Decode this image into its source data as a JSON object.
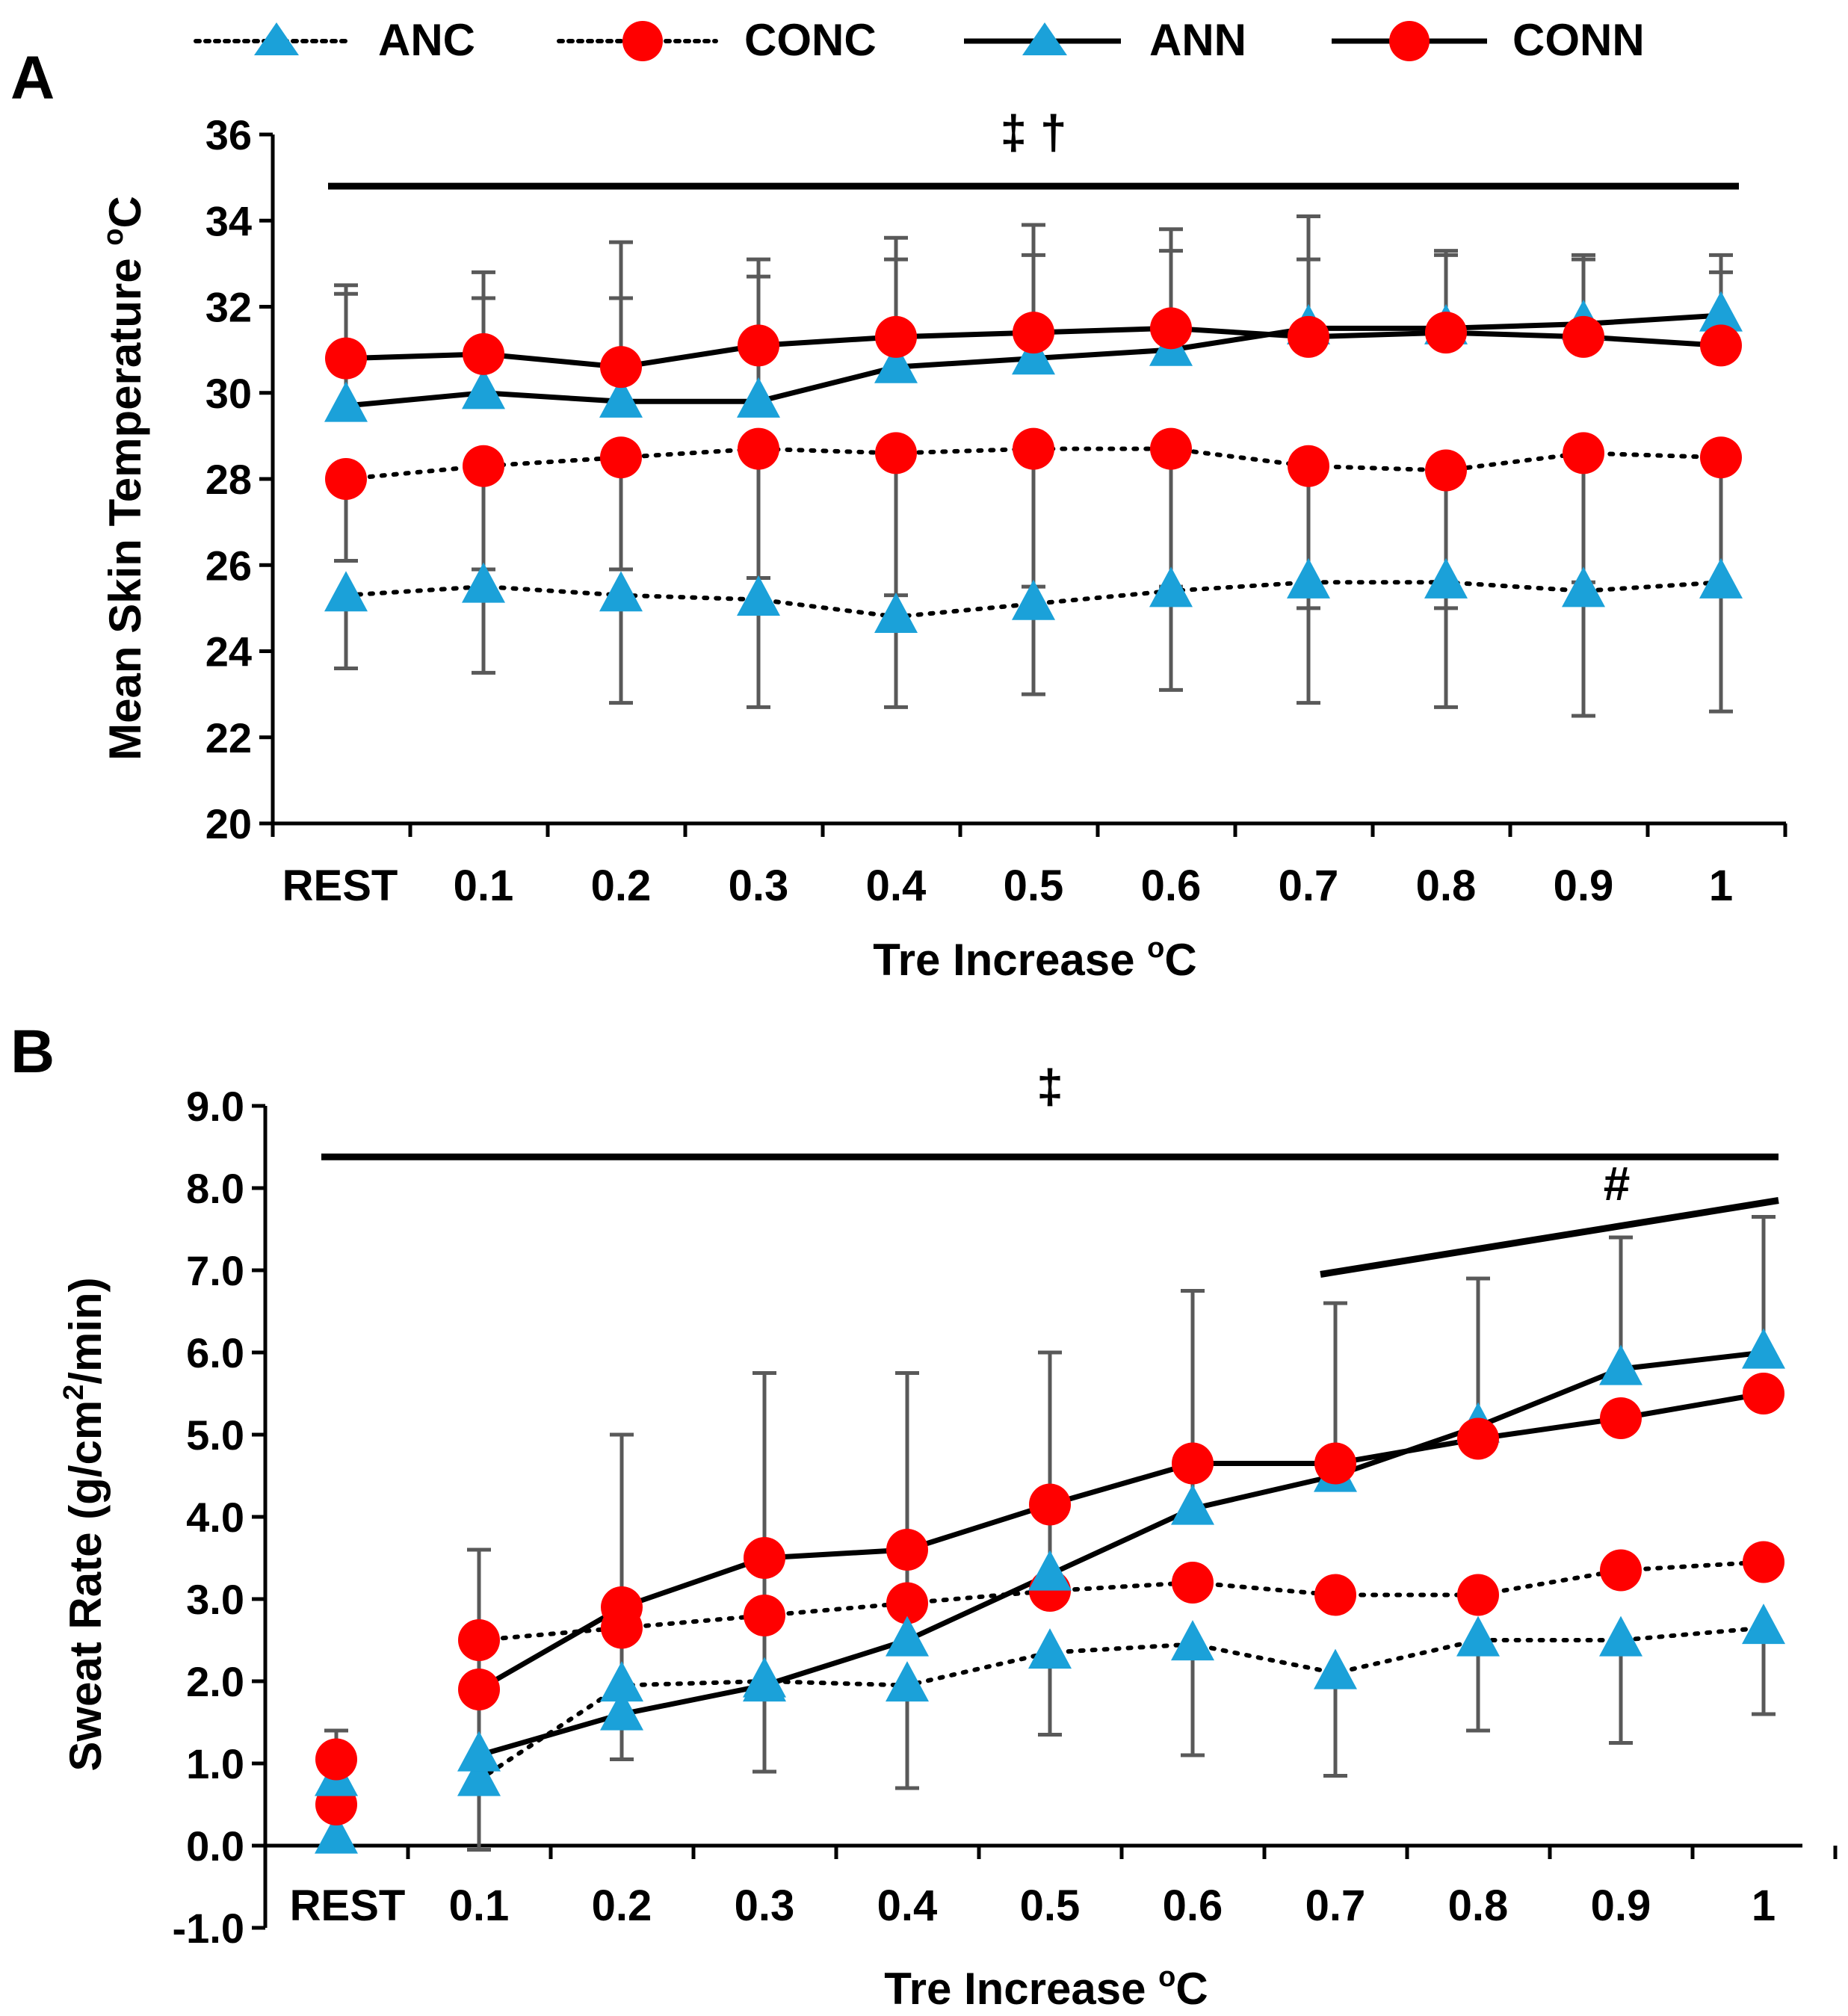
{
  "legend": [
    {
      "label": "ANC",
      "marker": "triangle",
      "line": "dotted",
      "color": "#1ba1d9"
    },
    {
      "label": "CONC",
      "marker": "circle",
      "line": "dotted",
      "color": "#ff0000"
    },
    {
      "label": "ANN",
      "marker": "triangle",
      "line": "solid",
      "color": "#1ba1d9"
    },
    {
      "label": "CONN",
      "marker": "circle",
      "line": "solid",
      "color": "#ff0000"
    }
  ],
  "colors": {
    "blue": "#1ba1d9",
    "red": "#ff0000",
    "error_bar": "#595959",
    "line": "#000000"
  },
  "chart_data": [
    {
      "panel": "A",
      "type": "line",
      "xlabel": "Tre Increase °C",
      "xlabel_main": "Tre Increase ",
      "xlabel_sup": "o",
      "xlabel_tail": "C",
      "ylabel_main": "Mean Skin Temperature ",
      "ylabel_sup": "o",
      "ylabel_tail": "C",
      "ylabel": "Mean Skin Temperature °C",
      "ylim": [
        20,
        36
      ],
      "yticks": [
        "20",
        "22",
        "24",
        "26",
        "28",
        "30",
        "32",
        "34",
        "36"
      ],
      "categories": [
        "REST",
        "0.1",
        "0.2",
        "0.3",
        "0.4",
        "0.5",
        "0.6",
        "0.7",
        "0.8",
        "0.9",
        "1"
      ],
      "significance": [
        {
          "symbol": "‡ †",
          "y_value": 34.8,
          "from": 0,
          "to": 10
        }
      ],
      "series": [
        {
          "name": "ANC",
          "values": [
            25.3,
            25.5,
            25.3,
            25.2,
            24.8,
            25.1,
            25.4,
            25.6,
            25.6,
            25.4,
            25.6
          ],
          "err_up": [],
          "err_down": [
            1.7,
            2.0,
            2.5,
            2.5,
            2.1,
            2.1,
            2.3,
            2.8,
            2.9,
            2.9,
            3.0
          ]
        },
        {
          "name": "CONC",
          "values": [
            28.0,
            28.3,
            28.5,
            28.7,
            28.6,
            28.7,
            28.7,
            28.3,
            28.2,
            28.6,
            28.5
          ],
          "err_up": [],
          "err_down": [
            1.9,
            2.4,
            2.6,
            3.0,
            3.3,
            3.2,
            3.2,
            3.3,
            3.2,
            3.0,
            2.9
          ]
        },
        {
          "name": "ANN",
          "values": [
            29.7,
            30.0,
            29.8,
            29.8,
            30.6,
            30.8,
            31.0,
            31.5,
            31.5,
            31.6,
            31.8
          ],
          "err_up": [
            2.8,
            2.8,
            3.7,
            3.3,
            3.0,
            3.1,
            2.8,
            2.6,
            1.8,
            1.6,
            1.4
          ],
          "err_down": []
        },
        {
          "name": "CONN",
          "values": [
            30.8,
            30.9,
            30.6,
            31.1,
            31.3,
            31.4,
            31.5,
            31.3,
            31.4,
            31.3,
            31.1
          ],
          "err_up": [
            1.5,
            1.3,
            1.6,
            1.6,
            1.8,
            1.8,
            1.8,
            1.8,
            1.8,
            1.8,
            1.7
          ],
          "err_down": []
        }
      ]
    },
    {
      "panel": "B",
      "type": "line",
      "xlabel": "Tre Increase °C",
      "xlabel_main": "Tre Increase ",
      "xlabel_sup": "o",
      "xlabel_tail": "C",
      "ylabel": "Sweat Rate (g/cm²/min)",
      "ylabel_main": "Sweat Rate (g/cm",
      "ylabel_sup": "2",
      "ylabel_tail": "/min)",
      "ylim": [
        -1,
        9
      ],
      "yticks": [
        "-1.0",
        "0.0",
        "1.0",
        "2.0",
        "3.0",
        "4.0",
        "5.0",
        "6.0",
        "7.0",
        "8.0",
        "9.0"
      ],
      "categories": [
        "REST",
        "0.1",
        "0.2",
        "0.3",
        "0.4",
        "0.5",
        "0.6",
        "0.7",
        "0.8",
        "0.9",
        "1"
      ],
      "significance": [
        {
          "symbol": "‡",
          "y_value": 8.38,
          "from": 0,
          "to": 10
        },
        {
          "symbol": "#",
          "y_from": 6.95,
          "y_to": 7.85,
          "from": 7,
          "to": 10
        }
      ],
      "series": [
        {
          "name": "ANC",
          "values": [
            0.1,
            0.8,
            1.95,
            2.0,
            1.95,
            2.35,
            2.45,
            2.1,
            2.5,
            2.5,
            2.65
          ],
          "err_up": [],
          "err_down": [
            0.1,
            0.85,
            0.9,
            1.1,
            1.25,
            1.0,
            1.35,
            1.25,
            1.1,
            1.25,
            1.05
          ]
        },
        {
          "name": "CONC",
          "values": [
            0.5,
            2.5,
            2.65,
            2.8,
            2.95,
            3.1,
            3.2,
            3.05,
            3.05,
            3.35,
            3.45
          ],
          "err_up": [],
          "err_down": []
        },
        {
          "name": "ANN",
          "values": [
            0.8,
            1.1,
            1.6,
            1.95,
            2.5,
            3.3,
            4.1,
            4.5,
            5.1,
            5.8,
            6.0
          ],
          "err_up": [
            0.6,
            2.5,
            3.4,
            3.8,
            3.25,
            2.7,
            2.65,
            2.1,
            1.8,
            1.6,
            1.65
          ],
          "err_down": []
        },
        {
          "name": "CONN",
          "values": [
            1.05,
            1.9,
            2.9,
            3.5,
            3.6,
            4.15,
            4.65,
            4.65,
            4.95,
            5.2,
            5.5
          ],
          "err_up": [],
          "err_down": []
        }
      ]
    }
  ]
}
